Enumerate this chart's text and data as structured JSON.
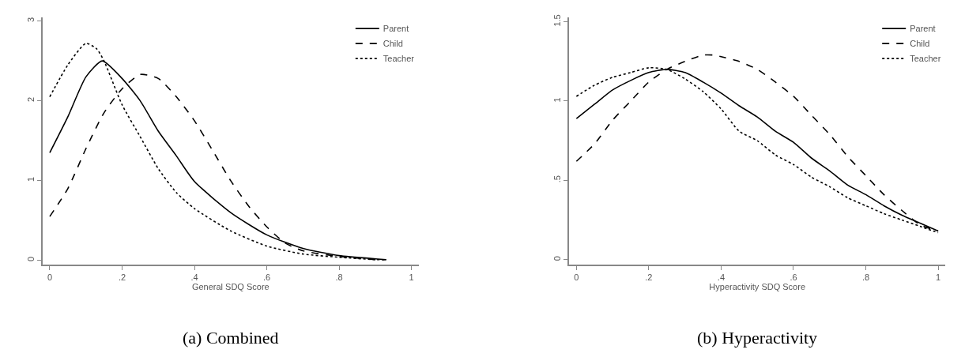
{
  "chart_data": [
    {
      "type": "line",
      "title": "(a) Combined",
      "xlabel": "General SDQ Score",
      "legend": "top right",
      "xlim": [
        -0.02,
        1.02
      ],
      "ylim": [
        -0.05,
        3.05
      ],
      "xticks": [
        0,
        {
          "value": 0.2,
          "label": ".2"
        },
        {
          "value": 0.4,
          "label": ".4"
        },
        {
          "value": 0.6,
          "label": ".6"
        },
        {
          "value": 0.8,
          "label": ".8"
        },
        1
      ],
      "yticks": [
        0,
        1,
        2,
        3
      ],
      "series": [
        {
          "name": "Parent",
          "color": "#000000",
          "line_style": "solid",
          "x": [
            0,
            0.05,
            0.1,
            0.145,
            0.2,
            0.25,
            0.3,
            0.35,
            0.4,
            0.5,
            0.6,
            0.7,
            0.8,
            0.9,
            0.93
          ],
          "values": [
            1.35,
            1.8,
            2.3,
            2.5,
            2.28,
            2.0,
            1.62,
            1.31,
            0.99,
            0.6,
            0.32,
            0.15,
            0.06,
            0.02,
            0.01
          ]
        },
        {
          "name": "Child",
          "color": "#000000",
          "line_style": "dashed",
          "x": [
            0,
            0.05,
            0.1,
            0.15,
            0.2,
            0.25,
            0.3,
            0.35,
            0.4,
            0.45,
            0.5,
            0.55,
            0.6,
            0.65,
            0.7,
            0.8,
            0.9,
            0.93
          ],
          "values": [
            0.55,
            0.9,
            1.4,
            1.85,
            2.15,
            2.33,
            2.28,
            2.05,
            1.75,
            1.38,
            1.0,
            0.68,
            0.42,
            0.22,
            0.12,
            0.05,
            0.01,
            0.01
          ]
        },
        {
          "name": "Teacher",
          "color": "#000000",
          "line_style": "dotted",
          "x": [
            0,
            0.05,
            0.1,
            0.13,
            0.15,
            0.2,
            0.25,
            0.3,
            0.35,
            0.4,
            0.5,
            0.6,
            0.7,
            0.8,
            0.9,
            0.93
          ],
          "values": [
            2.05,
            2.45,
            2.72,
            2.65,
            2.5,
            1.95,
            1.55,
            1.15,
            0.85,
            0.65,
            0.37,
            0.18,
            0.08,
            0.04,
            0.01,
            0.01
          ]
        }
      ]
    },
    {
      "type": "line",
      "title": "(b) Hyperactivity",
      "xlabel": "Hyperactivity SDQ Score",
      "legend": "top right",
      "xlim": [
        -0.02,
        1.02
      ],
      "ylim": [
        -0.03,
        1.53
      ],
      "xticks": [
        0,
        {
          "value": 0.2,
          "label": ".2"
        },
        {
          "value": 0.4,
          "label": ".4"
        },
        {
          "value": 0.6,
          "label": ".6"
        },
        {
          "value": 0.8,
          "label": ".8"
        },
        1
      ],
      "yticks": [
        0,
        {
          "value": 0.5,
          "label": ".5"
        },
        1,
        1.5
      ],
      "series": [
        {
          "name": "Parent",
          "color": "#000000",
          "line_style": "solid",
          "x": [
            0,
            0.05,
            0.1,
            0.15,
            0.2,
            0.25,
            0.3,
            0.35,
            0.4,
            0.45,
            0.5,
            0.55,
            0.6,
            0.65,
            0.7,
            0.75,
            0.8,
            0.85,
            0.9,
            0.95,
            1
          ],
          "values": [
            0.89,
            0.98,
            1.07,
            1.13,
            1.18,
            1.2,
            1.18,
            1.12,
            1.05,
            0.97,
            0.9,
            0.81,
            0.74,
            0.64,
            0.56,
            0.47,
            0.41,
            0.34,
            0.28,
            0.23,
            0.18
          ]
        },
        {
          "name": "Child",
          "color": "#000000",
          "line_style": "dashed",
          "x": [
            0,
            0.05,
            0.1,
            0.15,
            0.2,
            0.25,
            0.3,
            0.35,
            0.38,
            0.4,
            0.45,
            0.5,
            0.55,
            0.6,
            0.65,
            0.7,
            0.75,
            0.8,
            0.85,
            0.9,
            0.95,
            1
          ],
          "values": [
            0.62,
            0.73,
            0.88,
            1.0,
            1.12,
            1.2,
            1.25,
            1.29,
            1.29,
            1.28,
            1.25,
            1.2,
            1.12,
            1.03,
            0.91,
            0.79,
            0.65,
            0.53,
            0.41,
            0.31,
            0.22,
            0.18
          ]
        },
        {
          "name": "Teacher",
          "color": "#000000",
          "line_style": "dotted",
          "x": [
            0,
            0.05,
            0.1,
            0.15,
            0.2,
            0.25,
            0.3,
            0.35,
            0.4,
            0.45,
            0.5,
            0.55,
            0.6,
            0.65,
            0.7,
            0.75,
            0.8,
            0.85,
            0.9,
            0.95,
            1
          ],
          "values": [
            1.03,
            1.1,
            1.15,
            1.18,
            1.21,
            1.2,
            1.14,
            1.06,
            0.95,
            0.81,
            0.75,
            0.66,
            0.6,
            0.52,
            0.46,
            0.39,
            0.34,
            0.29,
            0.25,
            0.21,
            0.17
          ]
        }
      ]
    }
  ]
}
